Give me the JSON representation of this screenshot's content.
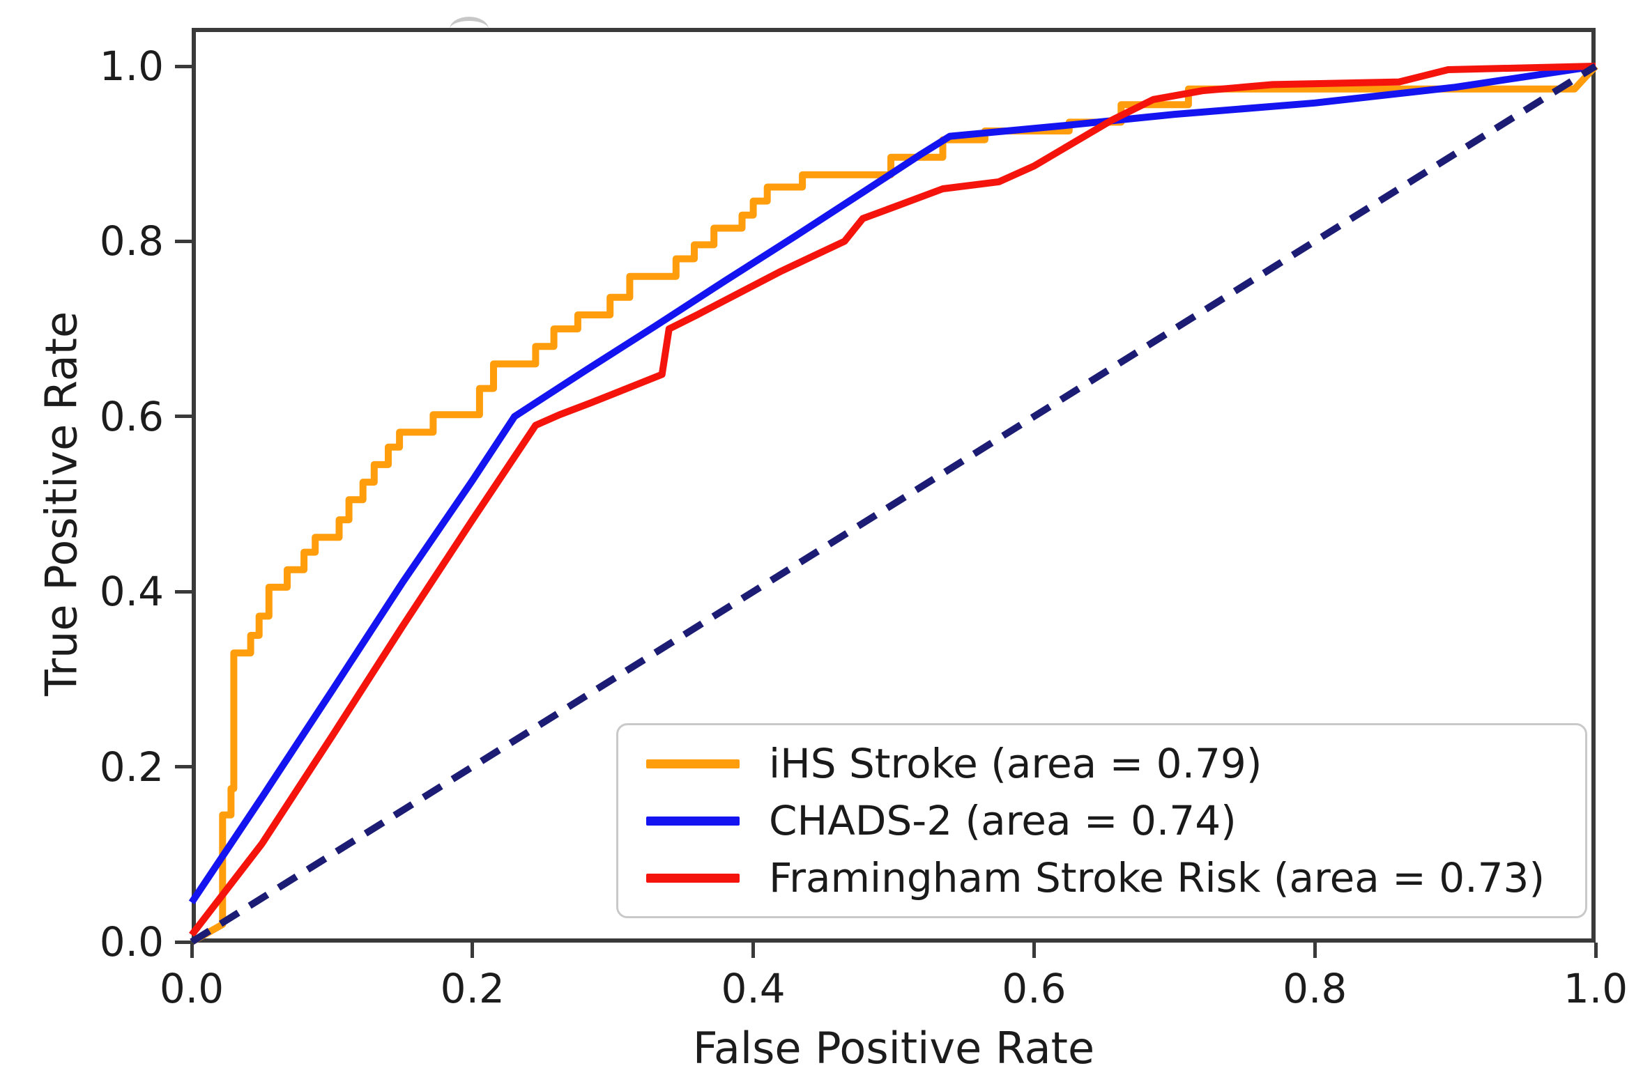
{
  "figure": {
    "background": "#ffffff"
  },
  "chart_data": {
    "type": "line",
    "title": "",
    "subtitle": "",
    "xlabel": "False Positive Rate",
    "ylabel": "True Positive Rate",
    "xlim": [
      0.0,
      1.0
    ],
    "ylim": [
      0.0,
      1.044
    ],
    "grid": false,
    "legend_position": "lower right",
    "frame_color": "#3a3a3a",
    "x_ticks": {
      "values": [
        0.0,
        0.2,
        0.4,
        0.6,
        0.8,
        1.0
      ],
      "labels": [
        "0.0",
        "0.2",
        "0.4",
        "0.6",
        "0.8",
        "1.0"
      ]
    },
    "y_ticks": {
      "values": [
        0.0,
        0.2,
        0.4,
        0.6,
        0.8,
        1.0
      ],
      "labels": [
        "0.0",
        "0.2",
        "0.4",
        "0.6",
        "0.8",
        "1.0"
      ]
    },
    "series": [
      {
        "id": "ihs-stroke",
        "name": "iHS Stroke (area = 0.79)",
        "auc": 0.79,
        "color": "#FF9D0D",
        "line_style": "solid",
        "in_legend": true,
        "points": [
          [
            0.0,
            0.0
          ],
          [
            0.022,
            0.02
          ],
          [
            0.022,
            0.145
          ],
          [
            0.028,
            0.145
          ],
          [
            0.028,
            0.175
          ],
          [
            0.03,
            0.175
          ],
          [
            0.03,
            0.33
          ],
          [
            0.042,
            0.33
          ],
          [
            0.042,
            0.35
          ],
          [
            0.048,
            0.35
          ],
          [
            0.048,
            0.372
          ],
          [
            0.055,
            0.372
          ],
          [
            0.055,
            0.405
          ],
          [
            0.068,
            0.405
          ],
          [
            0.068,
            0.425
          ],
          [
            0.08,
            0.425
          ],
          [
            0.08,
            0.445
          ],
          [
            0.088,
            0.445
          ],
          [
            0.088,
            0.462
          ],
          [
            0.105,
            0.462
          ],
          [
            0.105,
            0.482
          ],
          [
            0.112,
            0.482
          ],
          [
            0.112,
            0.505
          ],
          [
            0.122,
            0.505
          ],
          [
            0.122,
            0.525
          ],
          [
            0.13,
            0.525
          ],
          [
            0.13,
            0.545
          ],
          [
            0.14,
            0.545
          ],
          [
            0.14,
            0.565
          ],
          [
            0.148,
            0.565
          ],
          [
            0.148,
            0.582
          ],
          [
            0.172,
            0.582
          ],
          [
            0.172,
            0.602
          ],
          [
            0.205,
            0.602
          ],
          [
            0.205,
            0.632
          ],
          [
            0.215,
            0.632
          ],
          [
            0.215,
            0.66
          ],
          [
            0.245,
            0.66
          ],
          [
            0.245,
            0.68
          ],
          [
            0.258,
            0.68
          ],
          [
            0.258,
            0.7
          ],
          [
            0.275,
            0.7
          ],
          [
            0.275,
            0.716
          ],
          [
            0.298,
            0.716
          ],
          [
            0.298,
            0.736
          ],
          [
            0.312,
            0.736
          ],
          [
            0.312,
            0.76
          ],
          [
            0.345,
            0.76
          ],
          [
            0.345,
            0.78
          ],
          [
            0.358,
            0.78
          ],
          [
            0.358,
            0.796
          ],
          [
            0.372,
            0.796
          ],
          [
            0.372,
            0.815
          ],
          [
            0.392,
            0.815
          ],
          [
            0.392,
            0.83
          ],
          [
            0.4,
            0.83
          ],
          [
            0.4,
            0.846
          ],
          [
            0.41,
            0.846
          ],
          [
            0.41,
            0.862
          ],
          [
            0.435,
            0.862
          ],
          [
            0.435,
            0.876
          ],
          [
            0.498,
            0.876
          ],
          [
            0.498,
            0.896
          ],
          [
            0.535,
            0.896
          ],
          [
            0.535,
            0.916
          ],
          [
            0.565,
            0.916
          ],
          [
            0.565,
            0.926
          ],
          [
            0.625,
            0.926
          ],
          [
            0.625,
            0.936
          ],
          [
            0.662,
            0.936
          ],
          [
            0.662,
            0.956
          ],
          [
            0.71,
            0.956
          ],
          [
            0.71,
            0.974
          ],
          [
            0.985,
            0.974
          ],
          [
            1.0,
            1.0
          ]
        ]
      },
      {
        "id": "chads-2",
        "name": "CHADS-2 (area = 0.74)",
        "auc": 0.74,
        "color": "#1414F0",
        "line_style": "solid",
        "in_legend": true,
        "points": [
          [
            0.0,
            0.045
          ],
          [
            0.05,
            0.165
          ],
          [
            0.1,
            0.287
          ],
          [
            0.15,
            0.41
          ],
          [
            0.2,
            0.527
          ],
          [
            0.23,
            0.6
          ],
          [
            0.28,
            0.652
          ],
          [
            0.33,
            0.703
          ],
          [
            0.38,
            0.755
          ],
          [
            0.43,
            0.806
          ],
          [
            0.48,
            0.858
          ],
          [
            0.52,
            0.9
          ],
          [
            0.54,
            0.92
          ],
          [
            0.62,
            0.932
          ],
          [
            0.7,
            0.945
          ],
          [
            0.8,
            0.958
          ],
          [
            0.9,
            0.976
          ],
          [
            1.0,
            1.0
          ]
        ]
      },
      {
        "id": "framingham-stroke-risk",
        "name": "Framingham Stroke Risk (area = 0.73)",
        "auc": 0.73,
        "color": "#F5140C",
        "line_style": "solid",
        "in_legend": true,
        "points": [
          [
            0.0,
            0.008
          ],
          [
            0.05,
            0.112
          ],
          [
            0.1,
            0.235
          ],
          [
            0.15,
            0.36
          ],
          [
            0.2,
            0.482
          ],
          [
            0.245,
            0.59
          ],
          [
            0.262,
            0.602
          ],
          [
            0.285,
            0.616
          ],
          [
            0.335,
            0.648
          ],
          [
            0.34,
            0.7
          ],
          [
            0.36,
            0.716
          ],
          [
            0.42,
            0.766
          ],
          [
            0.465,
            0.8
          ],
          [
            0.478,
            0.826
          ],
          [
            0.505,
            0.842
          ],
          [
            0.535,
            0.86
          ],
          [
            0.575,
            0.868
          ],
          [
            0.6,
            0.886
          ],
          [
            0.655,
            0.938
          ],
          [
            0.685,
            0.962
          ],
          [
            0.72,
            0.972
          ],
          [
            0.77,
            0.979
          ],
          [
            0.86,
            0.982
          ],
          [
            0.895,
            0.996
          ],
          [
            1.0,
            1.0
          ]
        ]
      },
      {
        "id": "chance-diagonal",
        "name": "chance-diagonal",
        "color": "#1C1C74",
        "line_style": "dashed",
        "in_legend": false,
        "points": [
          [
            0.0,
            0.0
          ],
          [
            1.0,
            1.0
          ]
        ]
      }
    ]
  }
}
